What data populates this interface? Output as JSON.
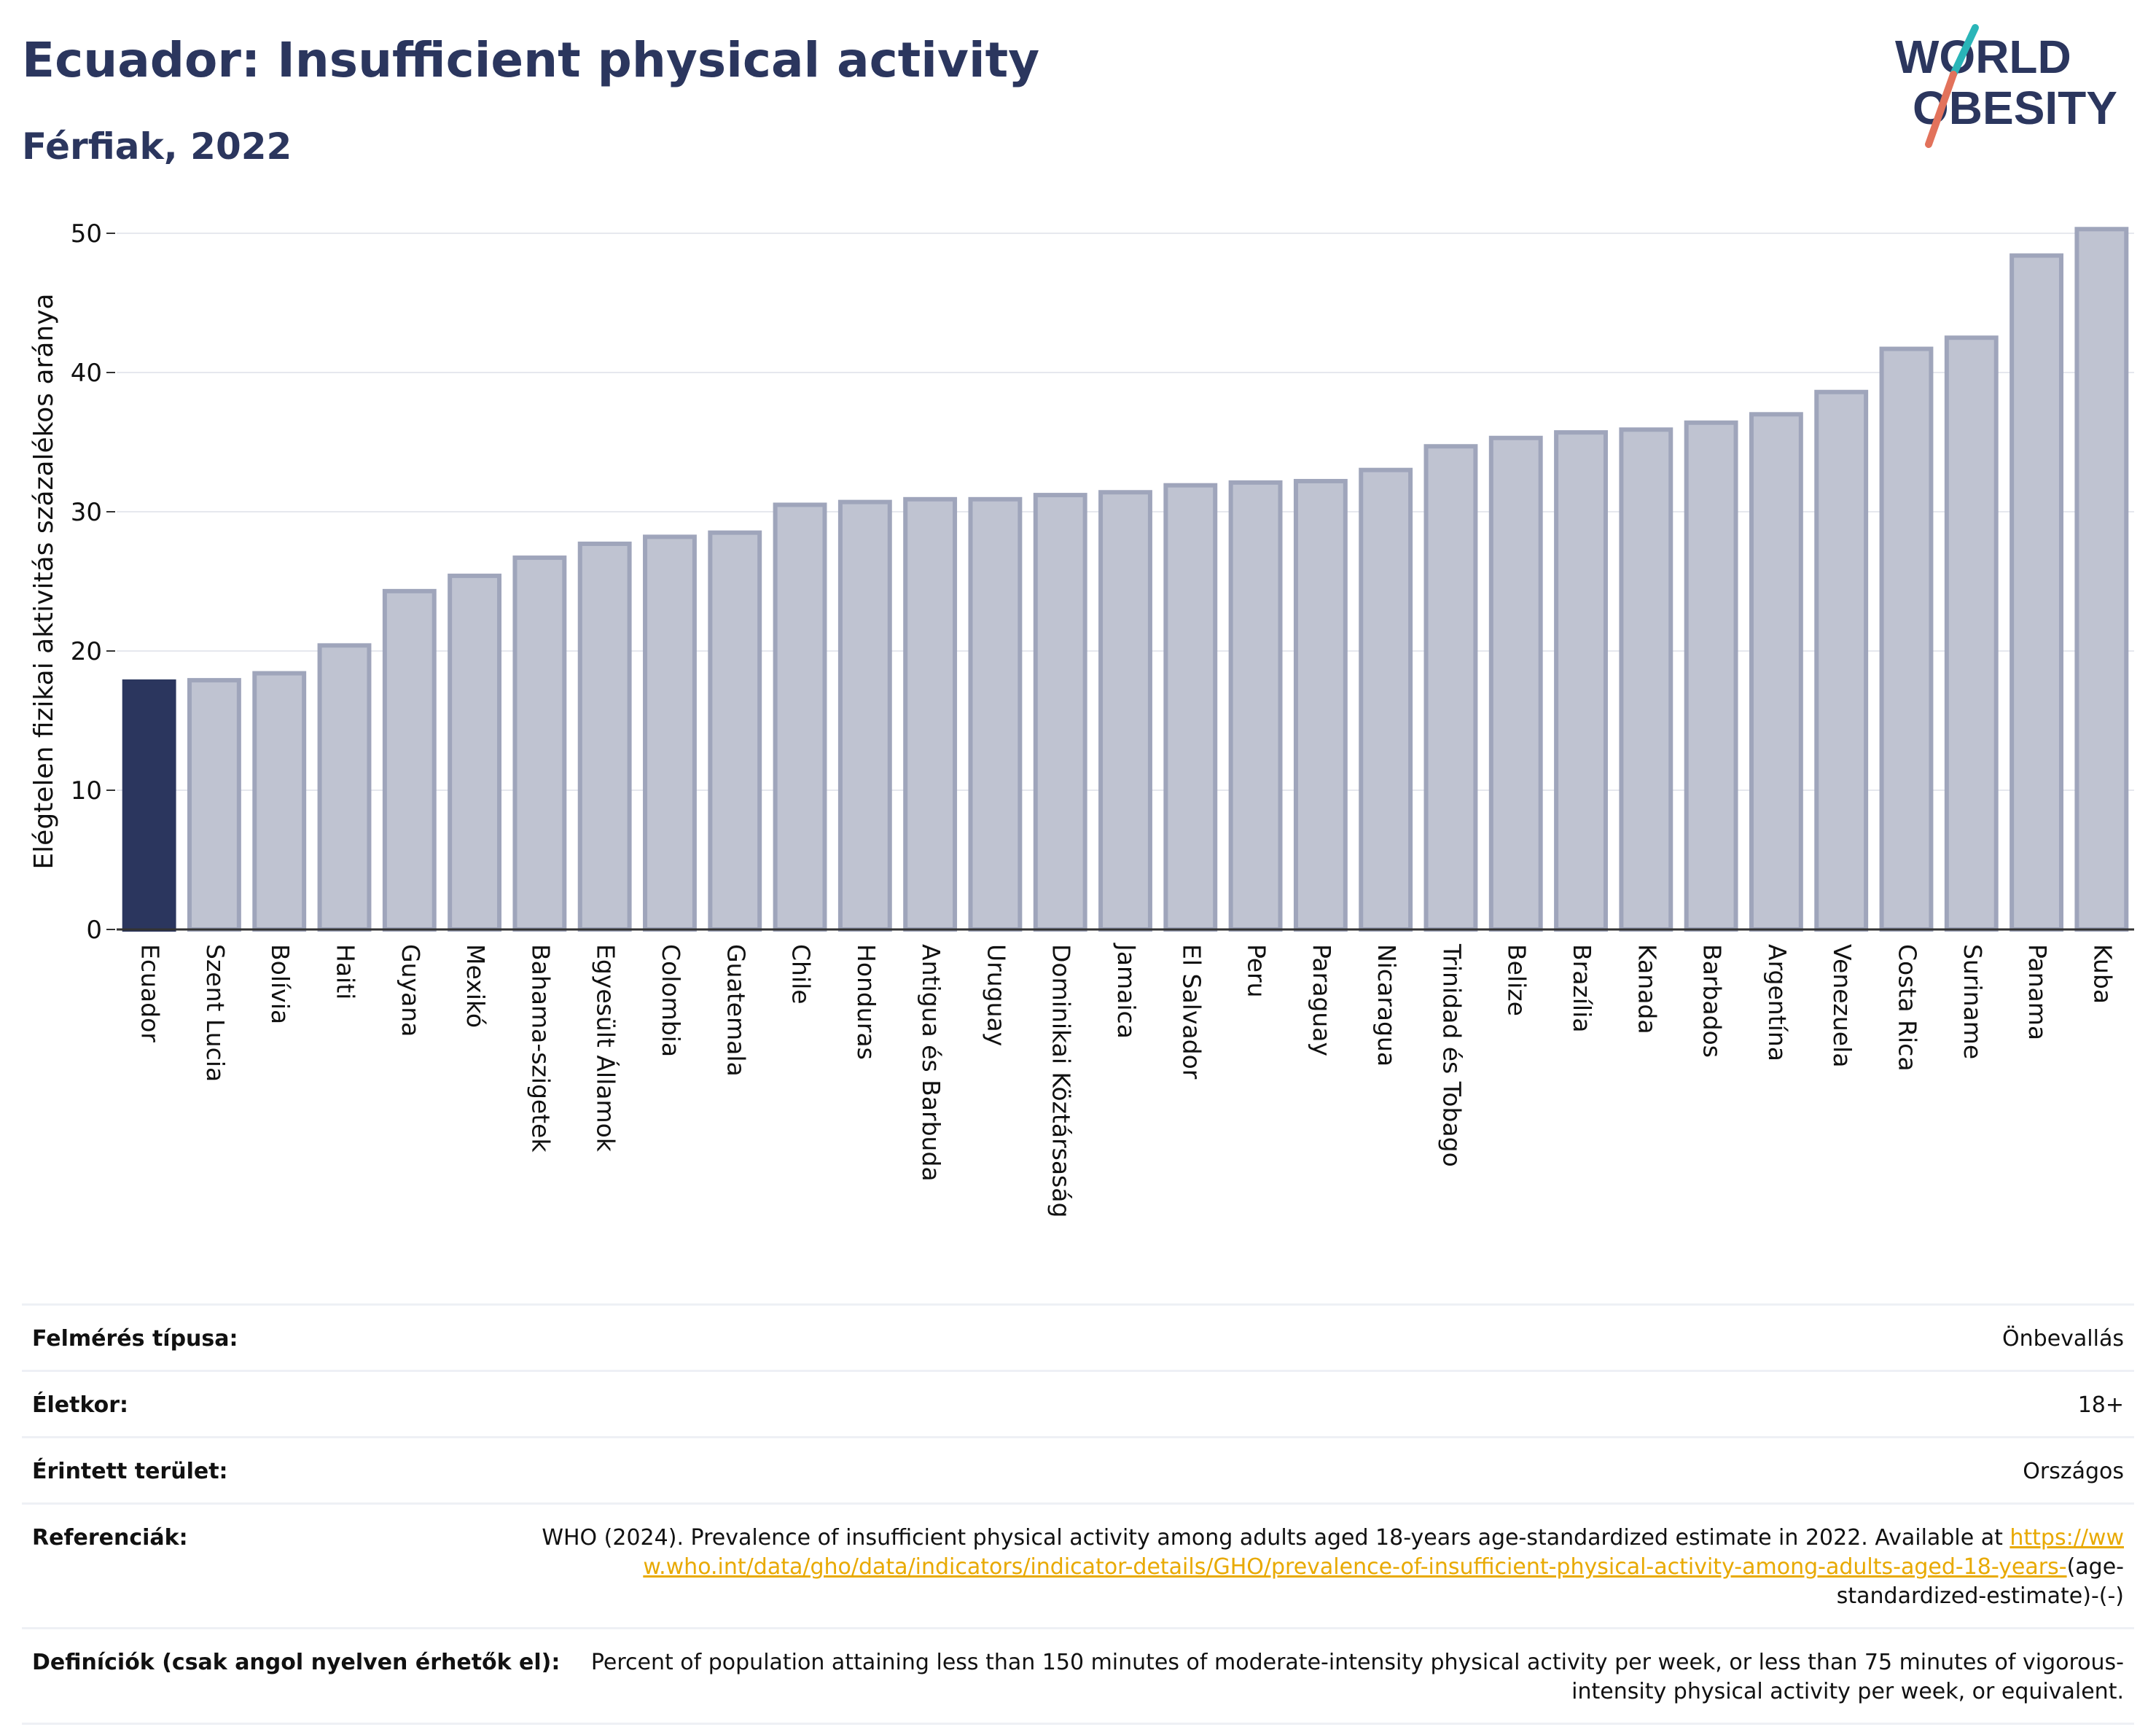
{
  "header": {
    "title": "Ecuador: Insufficient physical activity",
    "subtitle": "Férfiak, 2022",
    "logo_line1": "WORLD",
    "logo_line2": "OBESITY"
  },
  "colors": {
    "title": "#2b365e",
    "highlight_bar": "#2b365e",
    "bar_fill": "#bfc3d1",
    "bar_stroke": "#9fa5bb",
    "grid": "#e6e8ee",
    "link": "#e8a900",
    "logo_teal": "#2ab5b8",
    "logo_coral": "#e2725b"
  },
  "chart_data": {
    "type": "bar",
    "ylabel": "Elégtelen fizikai aktivitás százalékos aránya",
    "xlabel": "",
    "ylim": [
      0,
      50
    ],
    "yticks": [
      0,
      10,
      20,
      30,
      40,
      50
    ],
    "grid": true,
    "highlight": "Ecuador",
    "categories": [
      "Ecuador",
      "Szent Lucia",
      "Bolívia",
      "Haiti",
      "Guyana",
      "Mexikó",
      "Bahama-szigetek",
      "Egyesült Államok",
      "Colombia",
      "Guatemala",
      "Chile",
      "Honduras",
      "Antigua és Barbuda",
      "Uruguay",
      "Dominikai Köztársaság",
      "Jamaica",
      "El Salvador",
      "Peru",
      "Paraguay",
      "Nicaragua",
      "Trinidad és Tobago",
      "Belize",
      "Brazília",
      "Kanada",
      "Barbados",
      "Argentína",
      "Venezuela",
      "Costa Rica",
      "Suriname",
      "Panama",
      "Kuba"
    ],
    "values": [
      17.8,
      17.9,
      18.4,
      20.4,
      24.3,
      25.4,
      26.7,
      27.7,
      28.2,
      28.5,
      30.5,
      30.7,
      30.9,
      30.9,
      31.2,
      31.4,
      31.9,
      32.1,
      32.2,
      33.0,
      34.7,
      35.3,
      35.7,
      35.9,
      36.4,
      37.0,
      38.6,
      41.7,
      42.5,
      48.4,
      50.3
    ]
  },
  "info": [
    {
      "label": "Felmérés típusa:",
      "value": "Önbevallás"
    },
    {
      "label": "Életkor:",
      "value": "18+"
    },
    {
      "label": "Érintett terület:",
      "value": "Országos"
    }
  ],
  "references": {
    "label": "Referenciák:",
    "text": "WHO (2024). Prevalence of insufficient physical activity among adults aged 18-years age-standardized estimate in 2022. Available at",
    "link": "https://www.who.int/data/gho/data/indicators/indicator-details/GHO/prevalence-of-insufficient-physical-activity-among-adults-aged-18-years-",
    "suffix": "(age-standardized-estimate)-(-)"
  },
  "definitions": {
    "label": "Definíciók (csak angol nyelven érhetők el):",
    "text": "Percent of population attaining less than 150 minutes of moderate-intensity physical activity per week, or less than 75 minutes of vigorous-intensity physical activity per week, or equivalent."
  }
}
